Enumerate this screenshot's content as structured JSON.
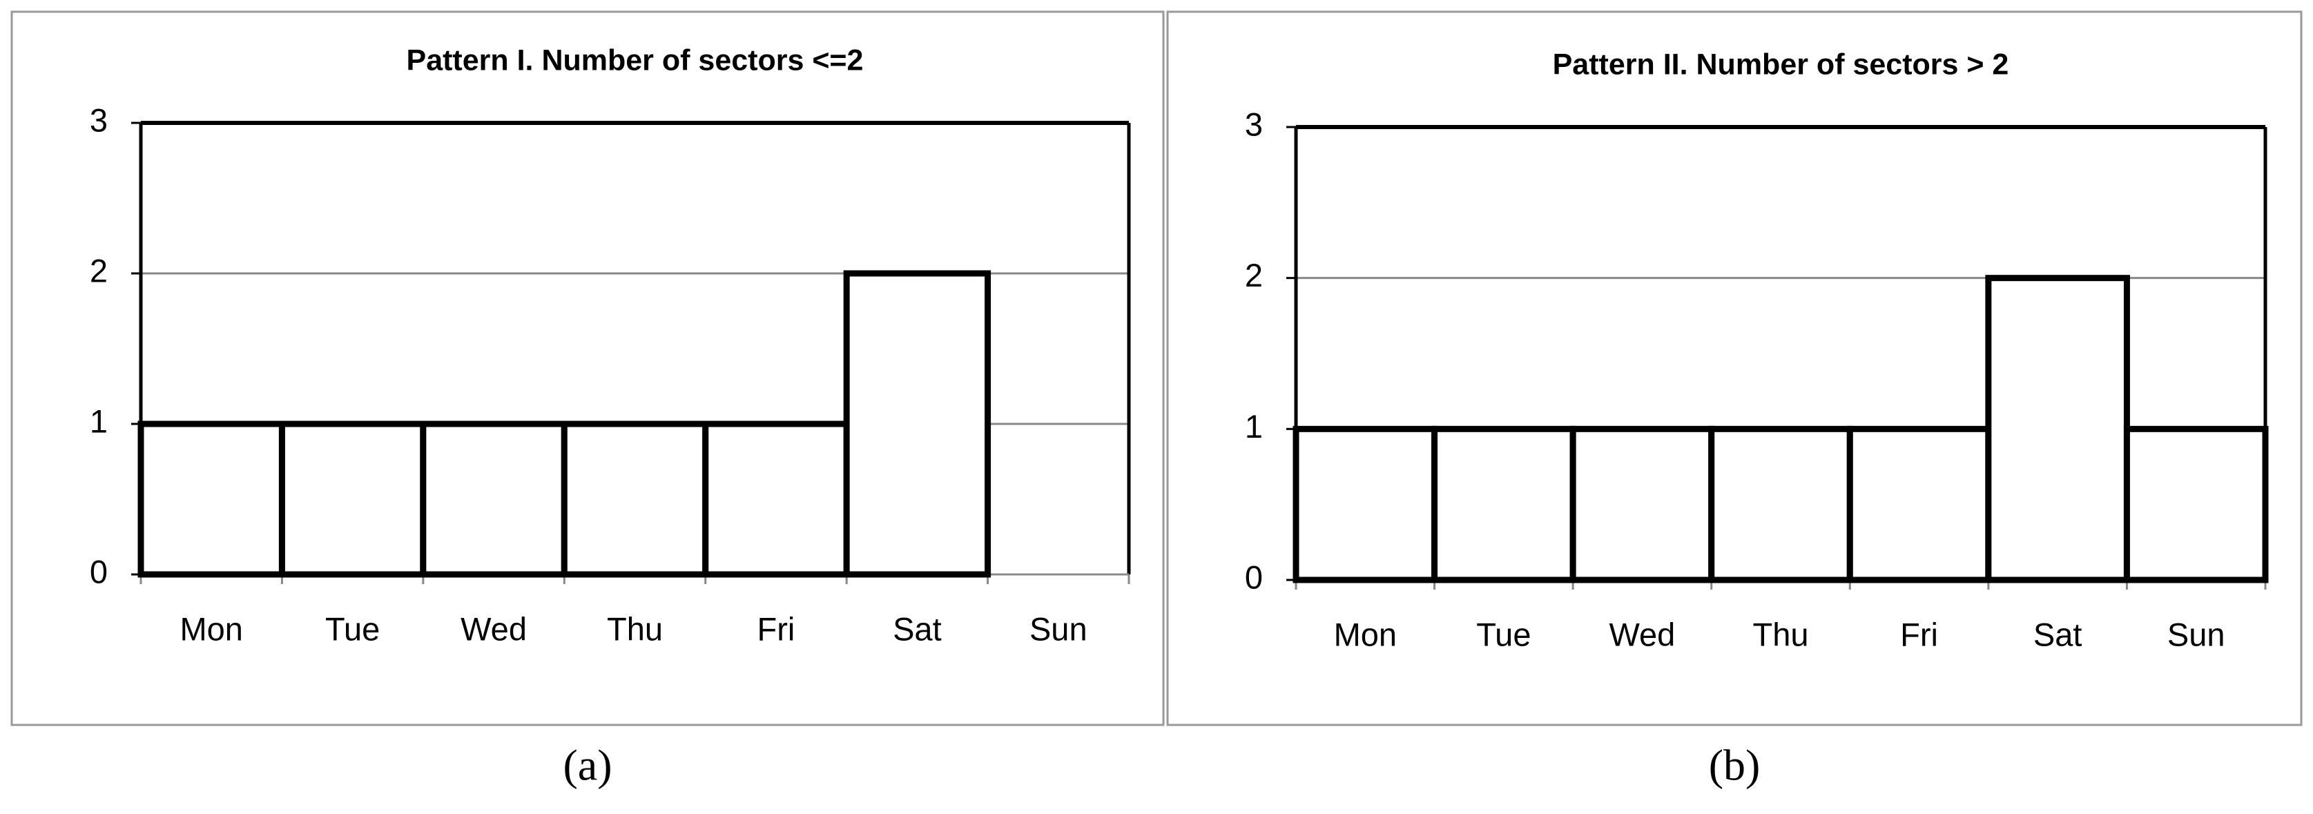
{
  "chart_data": [
    {
      "type": "bar",
      "title": "Pattern I. Number of  sectors <=2",
      "categories": [
        "Mon",
        "Tue",
        "Wed",
        "Thu",
        "Fri",
        "Sat",
        "Sun"
      ],
      "values": [
        1,
        1,
        1,
        1,
        1,
        2,
        0
      ],
      "color": "#ffffff",
      "edgecolor": "#000000",
      "ylim": [
        0,
        3
      ],
      "yticks": [
        0,
        1,
        2,
        3
      ],
      "grid": true,
      "caption": "(a)"
    },
    {
      "type": "bar",
      "title": "Pattern II. Number of  sectors > 2",
      "categories": [
        "Mon",
        "Tue",
        "Wed",
        "Thu",
        "Fri",
        "Sat",
        "Sun"
      ],
      "values": [
        1,
        1,
        1,
        1,
        1,
        2,
        1
      ],
      "color": "#ffffff",
      "edgecolor": "#000000",
      "ylim": [
        0,
        3
      ],
      "yticks": [
        0,
        1,
        2,
        3
      ],
      "grid": true,
      "caption": "(b)"
    }
  ]
}
